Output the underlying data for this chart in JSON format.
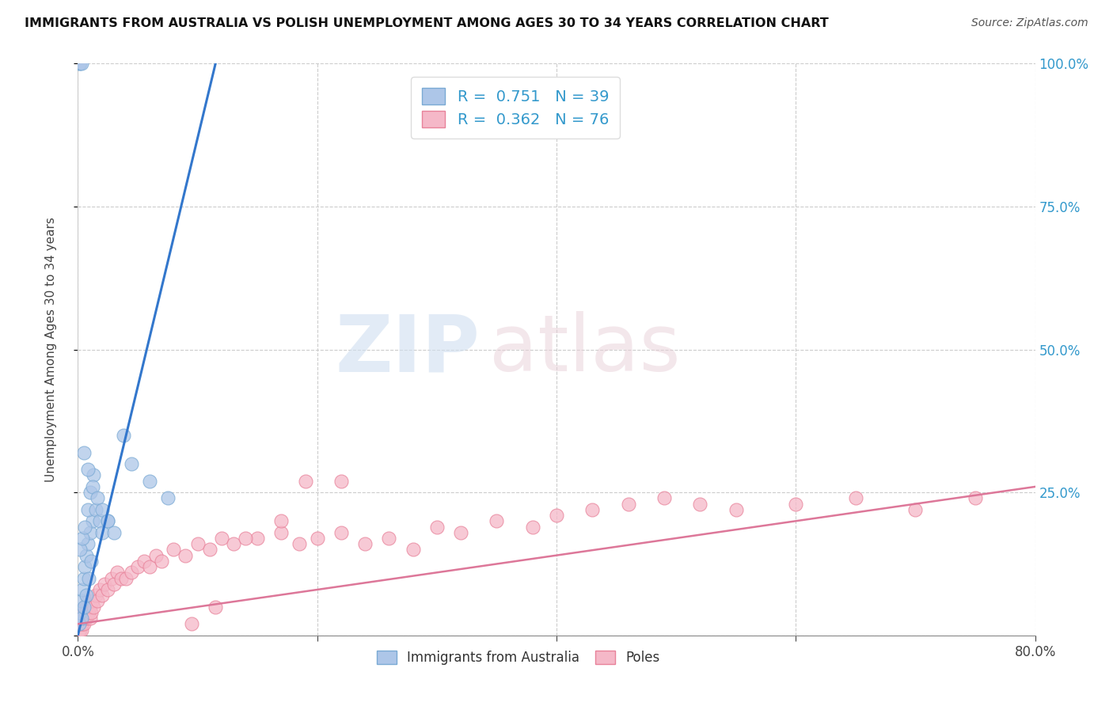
{
  "title": "IMMIGRANTS FROM AUSTRALIA VS POLISH UNEMPLOYMENT AMONG AGES 30 TO 34 YEARS CORRELATION CHART",
  "source": "Source: ZipAtlas.com",
  "ylabel": "Unemployment Among Ages 30 to 34 years",
  "xlim": [
    0.0,
    0.8
  ],
  "ylim": [
    0.0,
    1.0
  ],
  "xtick_positions": [
    0.0,
    0.2,
    0.4,
    0.6,
    0.8
  ],
  "xtick_labels": [
    "0.0%",
    "",
    "",
    "",
    "80.0%"
  ],
  "ytick_positions": [
    0.0,
    0.25,
    0.5,
    0.75,
    1.0
  ],
  "ytick_right_labels": [
    "",
    "25.0%",
    "50.0%",
    "75.0%",
    "100.0%"
  ],
  "blue_R": 0.751,
  "blue_N": 39,
  "pink_R": 0.362,
  "pink_N": 76,
  "blue_color": "#adc6e8",
  "blue_edge": "#7aaad4",
  "pink_color": "#f5b8c8",
  "pink_edge": "#e8829a",
  "trend_blue": "#3377cc",
  "trend_pink": "#dd7799",
  "watermark_zip": "ZIP",
  "watermark_atlas": "atlas",
  "blue_scatter_x": [
    0.001,
    0.002,
    0.003,
    0.004,
    0.005,
    0.006,
    0.007,
    0.008,
    0.01,
    0.012,
    0.003,
    0.005,
    0.007,
    0.009,
    0.011,
    0.002,
    0.004,
    0.006,
    0.008,
    0.01,
    0.013,
    0.015,
    0.018,
    0.02,
    0.025,
    0.001,
    0.002,
    0.003,
    0.005,
    0.008,
    0.012,
    0.016,
    0.02,
    0.025,
    0.03,
    0.038,
    0.045,
    0.06,
    0.075
  ],
  "blue_scatter_y": [
    0.02,
    0.04,
    0.06,
    0.08,
    0.1,
    0.12,
    0.14,
    0.16,
    0.18,
    0.2,
    0.03,
    0.05,
    0.07,
    0.1,
    0.13,
    0.15,
    0.17,
    0.19,
    0.22,
    0.25,
    0.28,
    0.22,
    0.2,
    0.18,
    0.2,
    1.0,
    1.0,
    1.0,
    0.32,
    0.29,
    0.26,
    0.24,
    0.22,
    0.2,
    0.18,
    0.35,
    0.3,
    0.27,
    0.24
  ],
  "pink_scatter_x": [
    0.001,
    0.001,
    0.001,
    0.002,
    0.002,
    0.002,
    0.003,
    0.003,
    0.003,
    0.004,
    0.004,
    0.005,
    0.005,
    0.006,
    0.006,
    0.007,
    0.007,
    0.008,
    0.008,
    0.009,
    0.01,
    0.01,
    0.011,
    0.012,
    0.013,
    0.015,
    0.016,
    0.018,
    0.02,
    0.022,
    0.025,
    0.028,
    0.03,
    0.033,
    0.036,
    0.04,
    0.045,
    0.05,
    0.055,
    0.06,
    0.065,
    0.07,
    0.08,
    0.09,
    0.1,
    0.11,
    0.12,
    0.13,
    0.15,
    0.17,
    0.185,
    0.2,
    0.22,
    0.24,
    0.26,
    0.28,
    0.3,
    0.32,
    0.35,
    0.38,
    0.4,
    0.43,
    0.46,
    0.49,
    0.52,
    0.55,
    0.6,
    0.65,
    0.7,
    0.75,
    0.19,
    0.22,
    0.17,
    0.14,
    0.115,
    0.095
  ],
  "pink_scatter_y": [
    0.01,
    0.02,
    0.03,
    0.01,
    0.02,
    0.03,
    0.01,
    0.02,
    0.04,
    0.02,
    0.03,
    0.02,
    0.04,
    0.03,
    0.05,
    0.03,
    0.05,
    0.04,
    0.06,
    0.04,
    0.03,
    0.05,
    0.04,
    0.06,
    0.05,
    0.07,
    0.06,
    0.08,
    0.07,
    0.09,
    0.08,
    0.1,
    0.09,
    0.11,
    0.1,
    0.1,
    0.11,
    0.12,
    0.13,
    0.12,
    0.14,
    0.13,
    0.15,
    0.14,
    0.16,
    0.15,
    0.17,
    0.16,
    0.17,
    0.18,
    0.16,
    0.17,
    0.18,
    0.16,
    0.17,
    0.15,
    0.19,
    0.18,
    0.2,
    0.19,
    0.21,
    0.22,
    0.23,
    0.24,
    0.23,
    0.22,
    0.23,
    0.24,
    0.22,
    0.24,
    0.27,
    0.27,
    0.2,
    0.17,
    0.05,
    0.02
  ],
  "blue_trend_x": [
    0.0,
    0.115
  ],
  "blue_trend_y": [
    0.0,
    1.0
  ],
  "pink_trend_x": [
    0.0,
    0.8
  ],
  "pink_trend_y": [
    0.02,
    0.26
  ]
}
